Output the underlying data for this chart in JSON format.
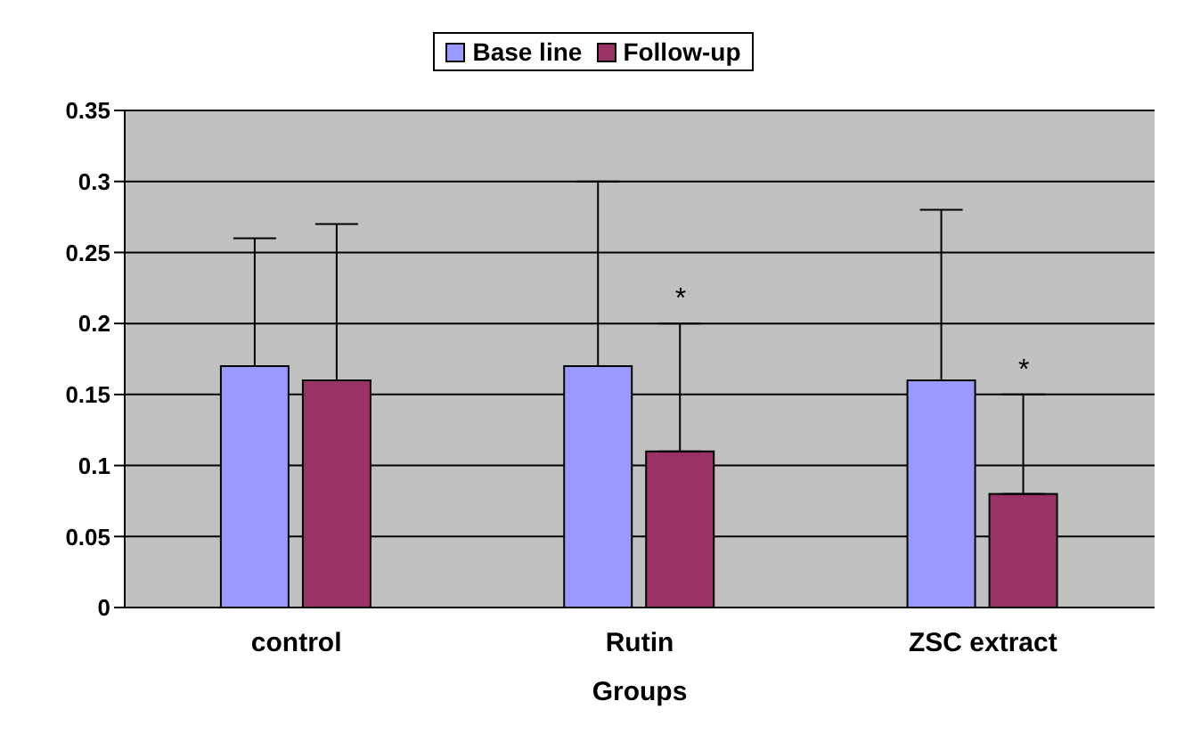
{
  "chart_data": {
    "type": "bar",
    "xlabel": "Groups",
    "categories": [
      "control",
      "Rutin",
      "ZSC extract"
    ],
    "series": [
      {
        "name": "Base line",
        "color": "#9999ff",
        "values": [
          0.17,
          0.17,
          0.16
        ],
        "errors": [
          [
            0.17,
            0.26
          ],
          [
            0.17,
            0.3
          ],
          [
            0.16,
            0.28
          ]
        ]
      },
      {
        "name": "Follow-up",
        "color": "#993366",
        "values": [
          0.16,
          0.11,
          0.08
        ],
        "errors": [
          [
            0.16,
            0.27
          ],
          [
            0.11,
            0.2
          ],
          [
            0.08,
            0.15
          ]
        ]
      }
    ],
    "ylim": [
      0,
      0.35
    ],
    "yticks": [
      0,
      0.05,
      0.1,
      0.15,
      0.2,
      0.25,
      0.3,
      0.35
    ],
    "grid": "y",
    "legend": "top",
    "annotations": [
      "*",
      "*"
    ]
  }
}
